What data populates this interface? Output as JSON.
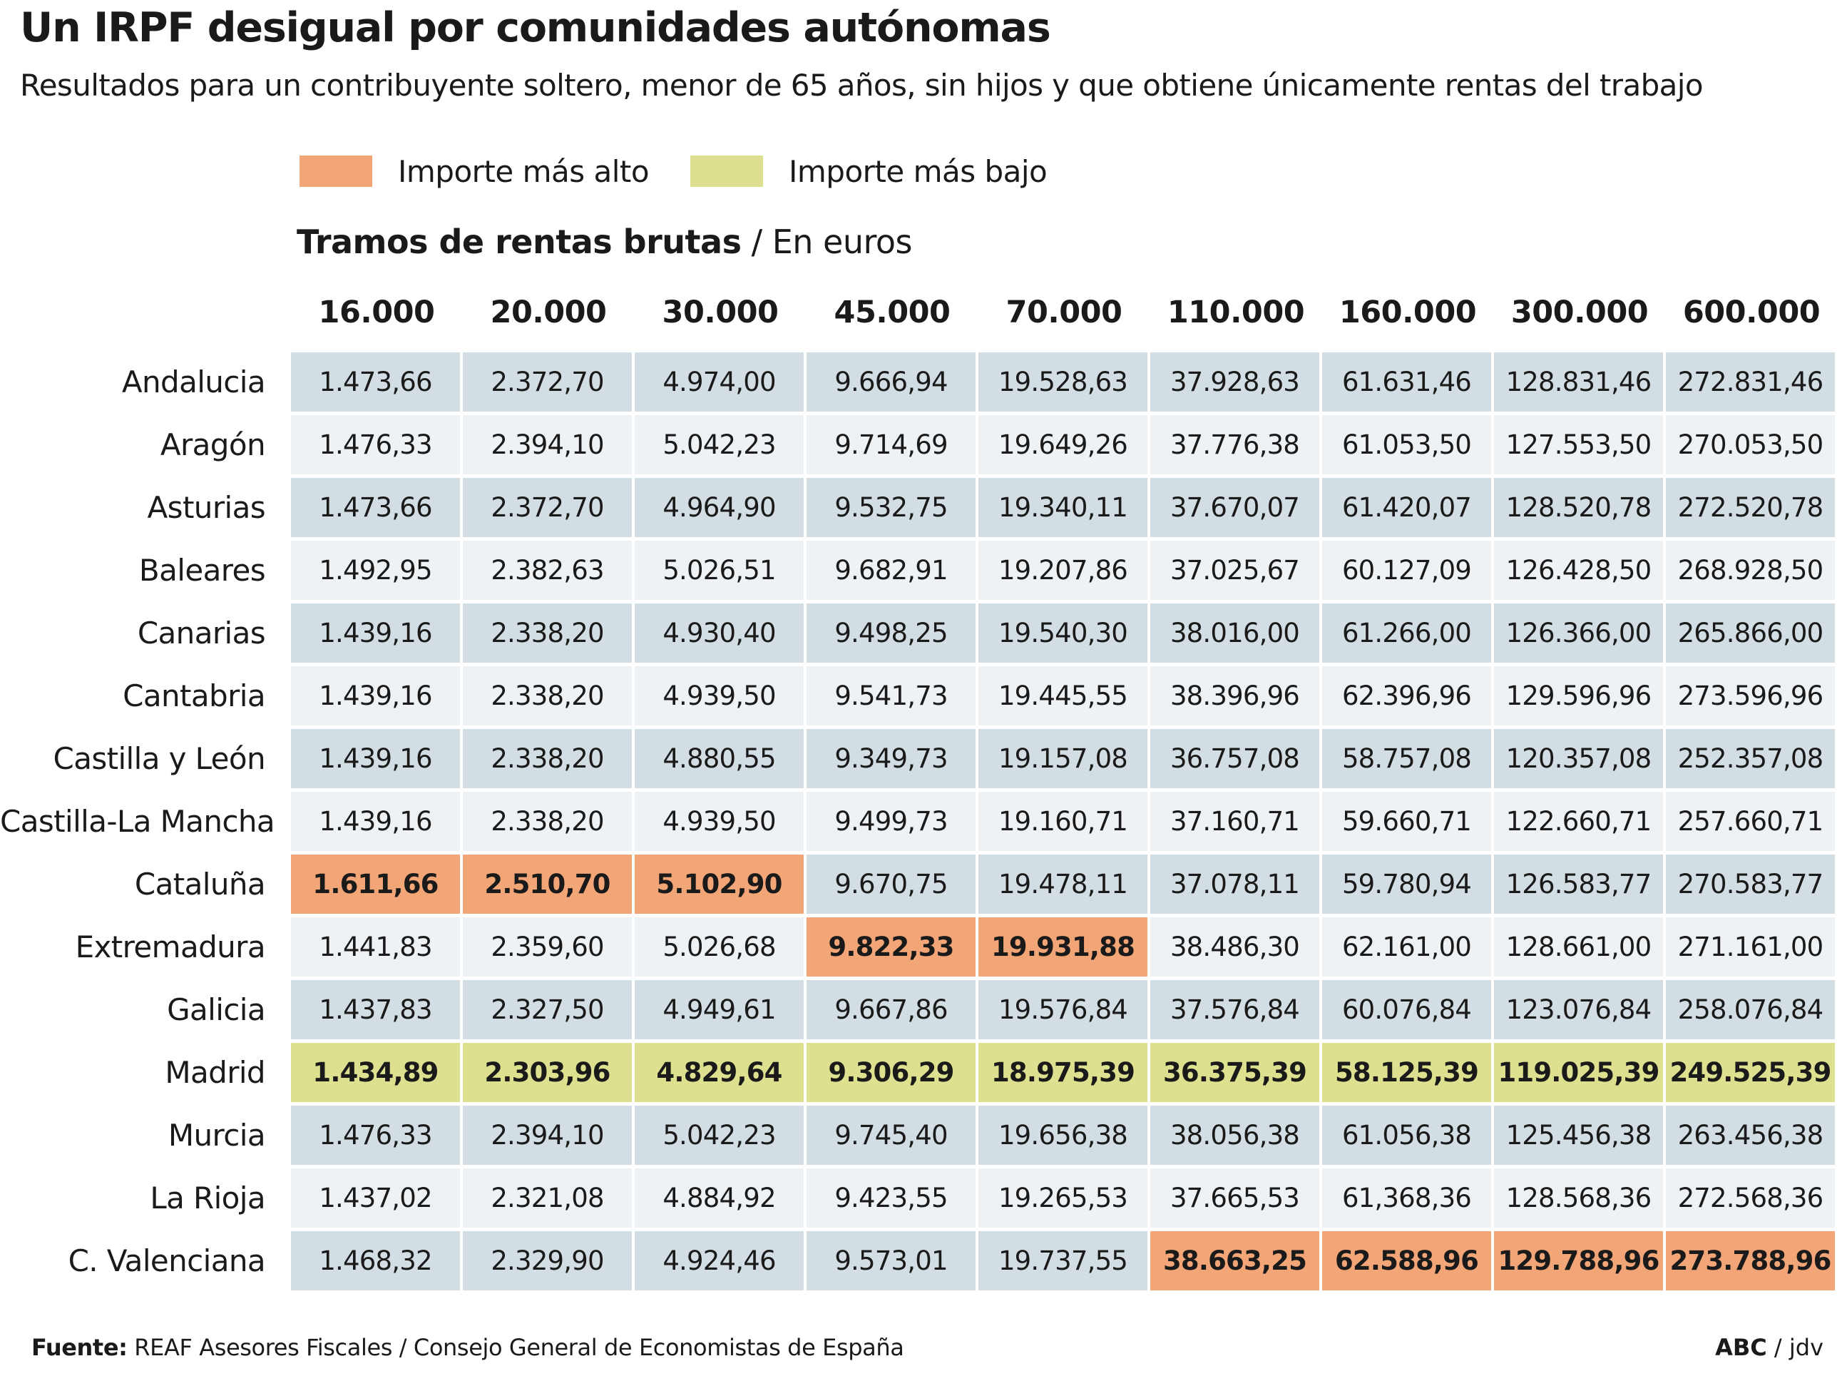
{
  "colors": {
    "high": "#f2a677",
    "low": "#dde08e",
    "row_shaded": "#d2dde4",
    "row_plain": "#eff2f5"
  },
  "header": {
    "title": "Un IRPF desigual por comunidades autónomas",
    "subtitle": "Resultados para un contribuyente soltero, menor de 65 años, sin hijos y que obtiene únicamente rentas del trabajo"
  },
  "legend": {
    "high_label": "Importe más alto",
    "low_label": "Importe más bajo"
  },
  "section": {
    "title_bold": "Tramos de rentas brutas",
    "title_rest": " / En euros"
  },
  "chart_data": {
    "type": "table",
    "columns": [
      "16.000",
      "20.000",
      "30.000",
      "45.000",
      "70.000",
      "110.000",
      "160.000",
      "300.000",
      "600.000"
    ],
    "rows": [
      {
        "region": "Andalucia",
        "values": [
          "1.473,66",
          "2.372,70",
          "4.974,00",
          "9.666,94",
          "19.528,63",
          "37.928,63",
          "61.631,46",
          "128.831,46",
          "272.831,46"
        ],
        "highlight": [
          "",
          "",
          "",
          "",
          "",
          "",
          "",
          "",
          ""
        ]
      },
      {
        "region": "Aragón",
        "values": [
          "1.476,33",
          "2.394,10",
          "5.042,23",
          "9.714,69",
          "19.649,26",
          "37.776,38",
          "61.053,50",
          "127.553,50",
          "270.053,50"
        ],
        "highlight": [
          "",
          "",
          "",
          "",
          "",
          "",
          "",
          "",
          ""
        ]
      },
      {
        "region": "Asturias",
        "values": [
          "1.473,66",
          "2.372,70",
          "4.964,90",
          "9.532,75",
          "19.340,11",
          "37.670,07",
          "61.420,07",
          "128.520,78",
          "272.520,78"
        ],
        "highlight": [
          "",
          "",
          "",
          "",
          "",
          "",
          "",
          "",
          ""
        ]
      },
      {
        "region": "Baleares",
        "values": [
          "1.492,95",
          "2.382,63",
          "5.026,51",
          "9.682,91",
          "19.207,86",
          "37.025,67",
          "60.127,09",
          "126.428,50",
          "268.928,50"
        ],
        "highlight": [
          "",
          "",
          "",
          "",
          "",
          "",
          "",
          "",
          ""
        ]
      },
      {
        "region": "Canarias",
        "values": [
          "1.439,16",
          "2.338,20",
          "4.930,40",
          "9.498,25",
          "19.540,30",
          "38.016,00",
          "61.266,00",
          "126.366,00",
          "265.866,00"
        ],
        "highlight": [
          "",
          "",
          "",
          "",
          "",
          "",
          "",
          "",
          ""
        ]
      },
      {
        "region": "Cantabria",
        "values": [
          "1.439,16",
          "2.338,20",
          "4.939,50",
          "9.541,73",
          "19.445,55",
          "38.396,96",
          "62.396,96",
          "129.596,96",
          "273.596,96"
        ],
        "highlight": [
          "",
          "",
          "",
          "",
          "",
          "",
          "",
          "",
          ""
        ]
      },
      {
        "region": "Castilla y León",
        "values": [
          "1.439,16",
          "2.338,20",
          "4.880,55",
          "9.349,73",
          "19.157,08",
          "36.757,08",
          "58.757,08",
          "120.357,08",
          "252.357,08"
        ],
        "highlight": [
          "",
          "",
          "",
          "",
          "",
          "",
          "",
          "",
          ""
        ]
      },
      {
        "region": "Castilla-La Mancha",
        "values": [
          "1.439,16",
          "2.338,20",
          "4.939,50",
          "9.499,73",
          "19.160,71",
          "37.160,71",
          "59.660,71",
          "122.660,71",
          "257.660,71"
        ],
        "highlight": [
          "",
          "",
          "",
          "",
          "",
          "",
          "",
          "",
          ""
        ]
      },
      {
        "region": "Cataluña",
        "values": [
          "1.611,66",
          "2.510,70",
          "5.102,90",
          "9.670,75",
          "19.478,11",
          "37.078,11",
          "59.780,94",
          "126.583,77",
          "270.583,77"
        ],
        "highlight": [
          "high",
          "high",
          "high",
          "",
          "",
          "",
          "",
          "",
          ""
        ]
      },
      {
        "region": "Extremadura",
        "values": [
          "1.441,83",
          "2.359,60",
          "5.026,68",
          "9.822,33",
          "19.931,88",
          "38.486,30",
          "62.161,00",
          "128.661,00",
          "271.161,00"
        ],
        "highlight": [
          "",
          "",
          "",
          "high",
          "high",
          "",
          "",
          "",
          ""
        ]
      },
      {
        "region": "Galicia",
        "values": [
          "1.437,83",
          "2.327,50",
          "4.949,61",
          "9.667,86",
          "19.576,84",
          "37.576,84",
          "60.076,84",
          "123.076,84",
          "258.076,84"
        ],
        "highlight": [
          "",
          "",
          "",
          "",
          "",
          "",
          "",
          "",
          ""
        ]
      },
      {
        "region": "Madrid",
        "values": [
          "1.434,89",
          "2.303,96",
          "4.829,64",
          "9.306,29",
          "18.975,39",
          "36.375,39",
          "58.125,39",
          "119.025,39",
          "249.525,39"
        ],
        "highlight": [
          "low",
          "low",
          "low",
          "low",
          "low",
          "low",
          "low",
          "low",
          "low"
        ]
      },
      {
        "region": "Murcia",
        "values": [
          "1.476,33",
          "2.394,10",
          "5.042,23",
          "9.745,40",
          "19.656,38",
          "38.056,38",
          "61.056,38",
          "125.456,38",
          "263.456,38"
        ],
        "highlight": [
          "",
          "",
          "",
          "",
          "",
          "",
          "",
          "",
          ""
        ]
      },
      {
        "region": "La Rioja",
        "values": [
          "1.437,02",
          "2.321,08",
          "4.884,92",
          "9.423,55",
          "19.265,53",
          "37.665,53",
          "61,368,36",
          "128.568,36",
          "272.568,36"
        ],
        "highlight": [
          "",
          "",
          "",
          "",
          "",
          "",
          "",
          "",
          ""
        ]
      },
      {
        "region": "C. Valenciana",
        "values": [
          "1.468,32",
          "2.329,90",
          "4.924,46",
          "9.573,01",
          "19.737,55",
          "38.663,25",
          "62.588,96",
          "129.788,96",
          "273.788,96"
        ],
        "highlight": [
          "",
          "",
          "",
          "",
          "",
          "high",
          "high",
          "high",
          "high"
        ]
      }
    ]
  },
  "footer": {
    "source_label": "Fuente:",
    "source_text": " REAF Asesores Fiscales / Consejo General de Economistas de España",
    "credit_bold": "ABC",
    "credit_rest": " / jdv"
  }
}
